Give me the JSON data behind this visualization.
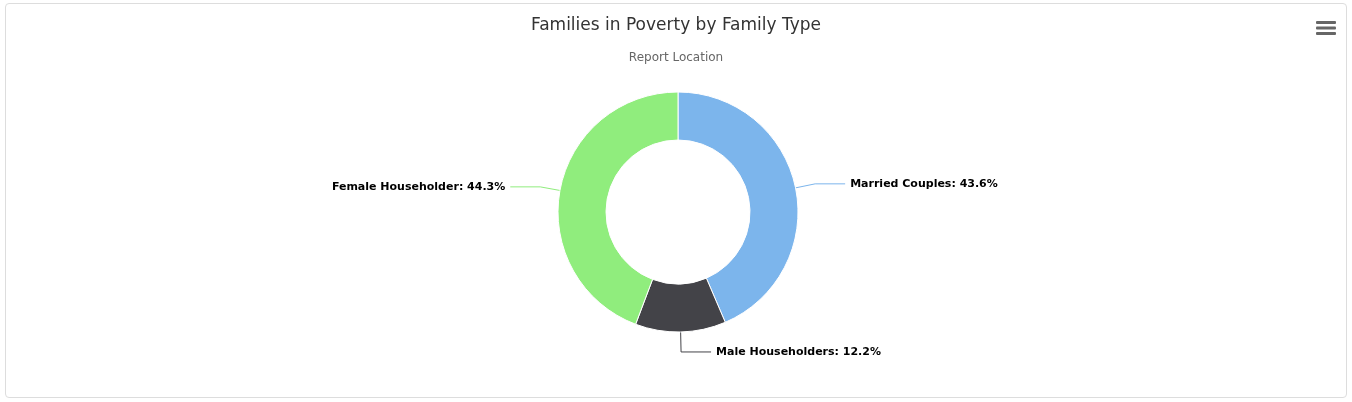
{
  "chart_data": {
    "type": "donut",
    "title": "Families in Poverty by Family Type",
    "subtitle": "Report Location",
    "categories": [
      "Married Couples",
      "Male Householders",
      "Female Householder"
    ],
    "values": [
      43.6,
      12.2,
      44.3
    ],
    "value_labels": [
      "43.6%",
      "12.2%",
      "44.3%"
    ],
    "colors": [
      "#7cb5ec",
      "#434348",
      "#90ed7d"
    ],
    "legend": false
  }
}
